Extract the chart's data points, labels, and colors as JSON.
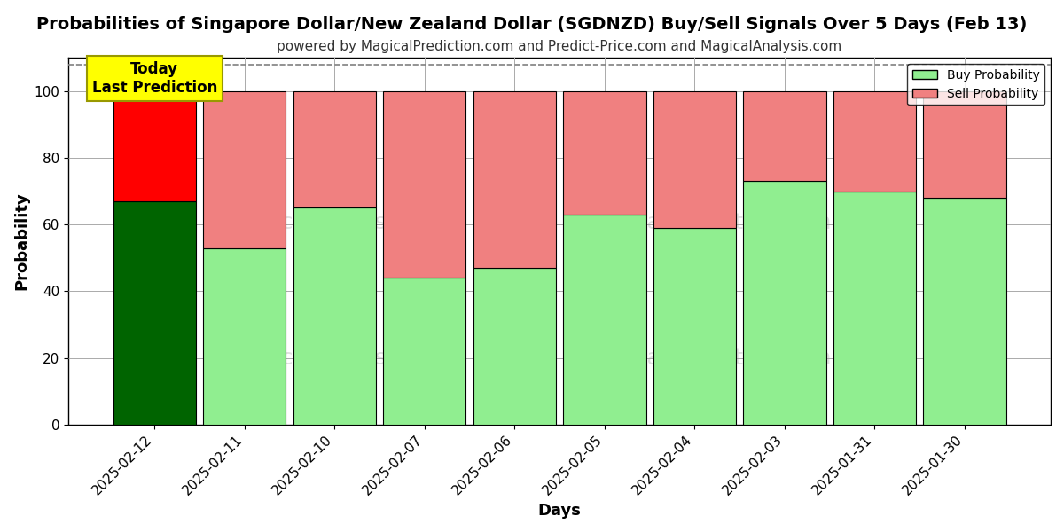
{
  "title": "Probabilities of Singapore Dollar/New Zealand Dollar (SGDNZD) Buy/Sell Signals Over 5 Days (Feb 13)",
  "subtitle": "powered by MagicalPrediction.com and Predict-Price.com and MagicalAnalysis.com",
  "xlabel": "Days",
  "ylabel": "Probability",
  "categories": [
    "2025-02-12",
    "2025-02-11",
    "2025-02-10",
    "2025-02-07",
    "2025-02-06",
    "2025-02-05",
    "2025-02-04",
    "2025-02-03",
    "2025-01-31",
    "2025-01-30"
  ],
  "buy_values": [
    67,
    53,
    65,
    44,
    47,
    63,
    59,
    73,
    70,
    68
  ],
  "sell_values": [
    33,
    47,
    35,
    56,
    53,
    37,
    41,
    27,
    30,
    32
  ],
  "buy_color_first": "#006400",
  "sell_color_first": "#ff0000",
  "buy_color": "#90EE90",
  "sell_color": "#F08080",
  "bar_edge_color": "#000000",
  "ylim_max": 110,
  "yticks": [
    0,
    20,
    40,
    60,
    80,
    100
  ],
  "dashed_line_y": 108,
  "today_label": "Today\nLast Prediction",
  "today_bg": "#ffff00",
  "today_edge": "#999900",
  "legend_buy": "Buy Probability",
  "legend_sell": "Sell Probability",
  "watermark_color": "#cccccc",
  "grid_color": "#aaaaaa",
  "background_color": "#ffffff",
  "title_fontsize": 14,
  "subtitle_fontsize": 11,
  "axis_label_fontsize": 13,
  "tick_fontsize": 11,
  "bar_width": 0.92
}
